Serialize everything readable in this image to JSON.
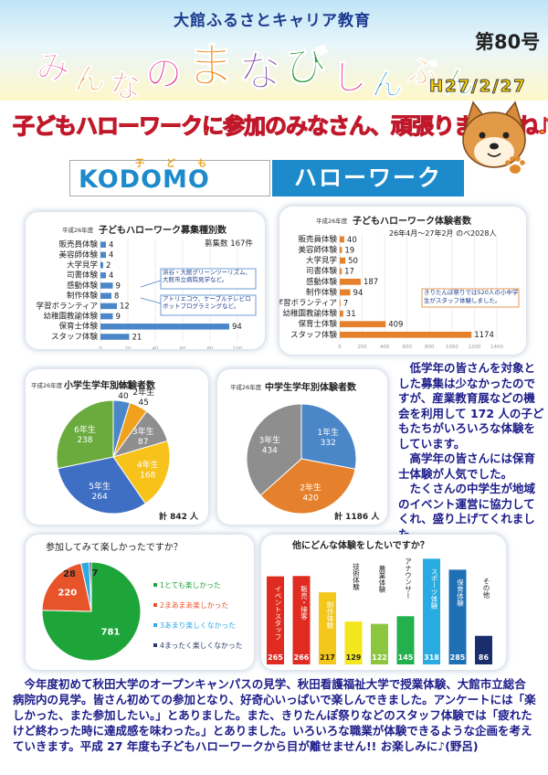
{
  "header": {
    "subtitle": "大館ふるさとキャリア教育",
    "title_chars": [
      "み",
      "ん",
      "な",
      "の",
      "ま",
      "な",
      "び",
      "し",
      "ん",
      "ぶ",
      "ん"
    ],
    "issue": "第80号",
    "date": "H27/2/27"
  },
  "banner": {
    "text": "子どもハローワークに参加のみなさん、頑張りましたね♪"
  },
  "logo": {
    "ruby1": "子",
    "ruby2": "ど",
    "ruby3": "も",
    "word": "KODOMO",
    "right": "ハローワーク"
  },
  "chart1": {
    "year": "平成26年度",
    "title": "子どもハローワーク募集種別数",
    "total": "募集数 167件",
    "note1": "浜谷・大館グリーンツーリズム、大館市立病院見学など。",
    "note2": "アトリエコウ、ケーブルテレビロボットプログラミングなど。"
  },
  "chart2": {
    "year": "平成26年度",
    "title": "子どもハローワーク体験者数",
    "period": "26年4月～27年2月 のべ2028人",
    "note": "きりたんぽ祭りでは520人の小中学生がスタッフ体験しました。"
  },
  "chart3": {
    "year": "平成26年度",
    "title": "小学生学年別体験者数",
    "total": "計 842 人"
  },
  "chart4": {
    "year": "平成26年度",
    "title": "中学生学年別体験者数",
    "total": "計 1186 人"
  },
  "chart5": {
    "title": "参加してみて楽しかったですか？"
  },
  "chart6": {
    "title": "他にどんな体験をしたいですか？"
  },
  "side_text": {
    "p1": "低学年の皆さんを対象とした募集は少なかったのですが、産業教育展などの機会を利用して 172 人の子どもたちがいろいろな体験をしています。",
    "p2": "高学年の皆さんには保育士体験が人気でした。",
    "p3": "たくさんの中学生が地域のイベント運営に協力してくれ、盛り上げてくれました。"
  },
  "bottom_text": "今年度初めて秋田大学のオープンキャンパスの見学、秋田看護福祉大学で授業体験、大館市立総合病院内の見学。皆さん初めての参加となり、好奇心いっぱいで楽しんできました。アンケートには「楽しかった、また参加したい。」とありました。また、きりたんぽ祭りなどのスタッフ体験では「疲れたけど終わった時に達成感を味わった。」とありました。いろいろな職業が体験できるような企画を考えていきます。平成 27 年度も子どもハローワークから目が離せません!! お楽しみに♪(野呂)",
  "chart_data": [
    {
      "type": "bar",
      "orientation": "horizontal",
      "title": "子どもハローワーク募集種別数",
      "categories": [
        "販売員体験",
        "美容師体験",
        "大学見学",
        "司書体験",
        "感動体験",
        "制作体験",
        "学習ボランティア",
        "幼稚園教諭体験",
        "保育士体験",
        "スタッフ体験"
      ],
      "values": [
        4,
        4,
        2,
        4,
        9,
        8,
        12,
        9,
        94,
        21
      ],
      "xlim": [
        0,
        100
      ],
      "xticks": [
        "0",
        "20",
        "40",
        "60",
        "80",
        "100"
      ],
      "color": "#4a86c8"
    },
    {
      "type": "bar",
      "orientation": "horizontal",
      "title": "子どもハローワーク体験者数",
      "categories": [
        "販売員体験",
        "美容師体験",
        "大学見学",
        "司書体験",
        "感動体験",
        "制作体験",
        "学習ボランティア",
        "幼稚園教諭体験",
        "保育士体験",
        "スタッフ体験"
      ],
      "values": [
        40,
        19,
        50,
        17,
        187,
        94,
        7,
        31,
        409,
        1174
      ],
      "xlim": [
        0,
        1400
      ],
      "xticks": [
        "0",
        "200",
        "400",
        "600",
        "800",
        "1000",
        "1200",
        "1400"
      ],
      "color": "#e5812c"
    },
    {
      "type": "pie",
      "title": "小学生学年別体験者数",
      "labels": [
        "1年生",
        "2年生",
        "3年生",
        "4年生",
        "5年生",
        "6年生"
      ],
      "values": [
        40,
        45,
        87,
        168,
        264,
        238
      ],
      "colors": [
        "#4a86c8",
        "#f0a21e",
        "#8e8e8e",
        "#f7c21a",
        "#3f6fc4",
        "#6bab3e"
      ]
    },
    {
      "type": "pie",
      "title": "中学生学年別体験者数",
      "labels": [
        "1年生",
        "2年生",
        "3年生"
      ],
      "values": [
        332,
        420,
        434
      ],
      "colors": [
        "#4a86c8",
        "#e5812c",
        "#8e8e8e"
      ]
    },
    {
      "type": "pie",
      "title": "参加してみて楽しかったですか？",
      "labels": [
        "1とても楽しかった",
        "2まあまあ楽しかった",
        "3あまり楽しくなかった",
        "4まったく楽しくなかった"
      ],
      "values": [
        781,
        220,
        28,
        7
      ],
      "colors": [
        "#1ea53a",
        "#e8542a",
        "#2eaae1",
        "#2b3a66"
      ]
    },
    {
      "type": "bar",
      "title": "他にどんな体験をしたいですか？",
      "categories": [
        "イベントスタッフ",
        "販売・接客",
        "制作体験",
        "技術体験",
        "農業体験",
        "アナウンサー",
        "スポーツ体験",
        "保育体験",
        "その他"
      ],
      "values": [
        265,
        266,
        217,
        129,
        122,
        145,
        318,
        285,
        86
      ],
      "colors": [
        "#e02b20",
        "#e02b20",
        "#f3c71c",
        "#f3e61c",
        "#8cc63f",
        "#22b14c",
        "#29abe2",
        "#1f6fb5",
        "#1a2e6e"
      ]
    }
  ]
}
